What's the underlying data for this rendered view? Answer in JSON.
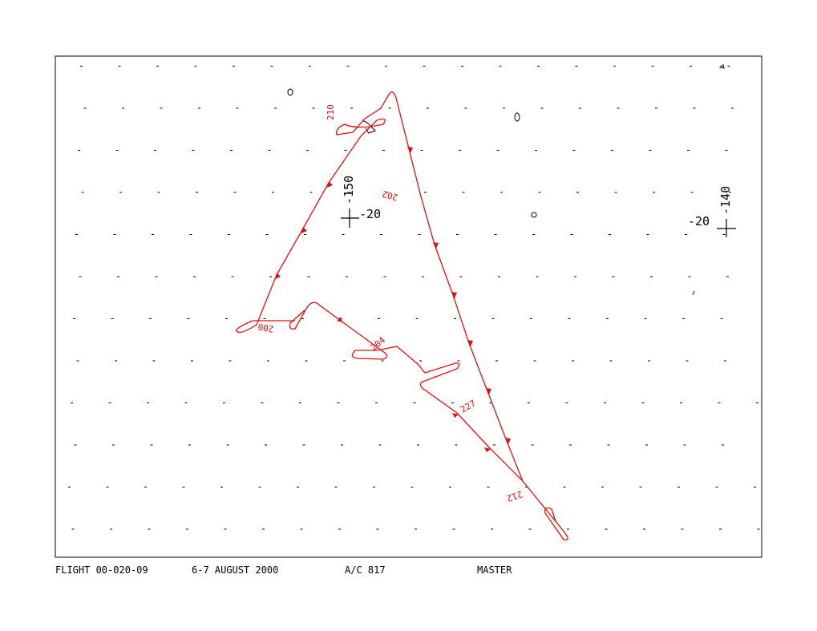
{
  "footer": {
    "flight": "FLIGHT 00-020-09",
    "date": "6-7 AUGUST 2000",
    "aircraft": "A/C 817",
    "mode": "MASTER"
  },
  "grid_labels": [
    {
      "lon": "-150",
      "lat": "-20"
    },
    {
      "lon": "-140",
      "lat": "-20"
    }
  ],
  "track_labels": [
    "210",
    "202",
    "200",
    "204",
    "227",
    "212"
  ]
}
